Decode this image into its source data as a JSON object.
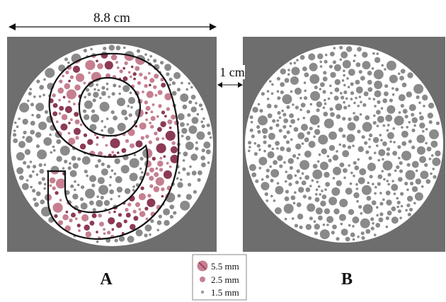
{
  "dimensions": {
    "width_label": "8.8 cm",
    "gap_label": "1 cm"
  },
  "plates": [
    {
      "id": "A",
      "label": "A",
      "figure": "9"
    },
    {
      "id": "B",
      "label": "B"
    }
  ],
  "legend": {
    "items": [
      {
        "label": "5.5 mm"
      },
      {
        "label": "2.5 mm"
      },
      {
        "label": "1.5 mm"
      }
    ]
  },
  "colors": {
    "background": "#6e6e6e",
    "gray_dot": "#8a8a8a",
    "white": "#ffffff",
    "figure_pink": "#c77f90",
    "figure_dark": "#8c3a55",
    "outline": "#111111"
  }
}
